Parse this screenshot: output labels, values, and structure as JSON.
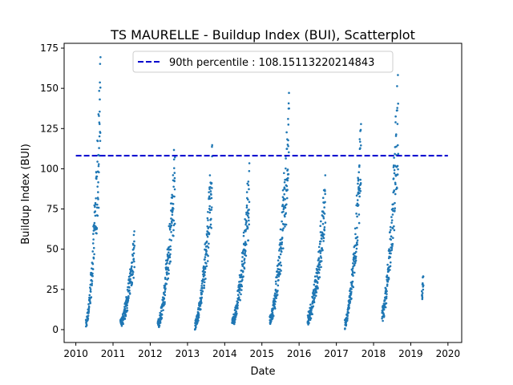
{
  "chart_data": {
    "type": "scatter",
    "title": "TS MAURELLE - Buildup Index (BUI), Scatterplot",
    "xlabel": "Date",
    "ylabel": "Buildup Index (BUI)",
    "xlim": [
      "2009-09-08",
      "2020-05-15"
    ],
    "ylim": [
      -8,
      178
    ],
    "x_ticks": [
      "2010",
      "2011",
      "2012",
      "2013",
      "2014",
      "2015",
      "2016",
      "2017",
      "2018",
      "2019",
      "2020"
    ],
    "y_ticks": [
      0,
      25,
      50,
      75,
      100,
      125,
      150,
      175
    ],
    "grid": false,
    "legend_position": "top-center",
    "colors": {
      "points": "#1f77b4",
      "reference_line": "#0000cd"
    },
    "reference_line": {
      "label": "90th percentile : 108.15113220214843",
      "value": 108.15113220214843,
      "x_range": [
        "2010-01-01",
        "2020-01-01"
      ],
      "style": "dashed"
    },
    "seasons": [
      {
        "year": 2010,
        "start": "2010-04-10",
        "end": "2010-08-31",
        "min": 1,
        "peak": 170
      },
      {
        "year": 2011,
        "start": "2011-03-15",
        "end": "2011-07-31",
        "min": 1,
        "peak": 62
      },
      {
        "year": 2012,
        "start": "2012-03-15",
        "end": "2012-08-31",
        "min": 0,
        "peak": 119
      },
      {
        "year": 2013,
        "start": "2013-03-15",
        "end": "2013-08-31",
        "min": 0,
        "peak": 116
      },
      {
        "year": 2014,
        "start": "2014-03-15",
        "end": "2014-08-31",
        "min": 2,
        "peak": 104
      },
      {
        "year": 2015,
        "start": "2015-03-20",
        "end": "2015-09-25",
        "min": 3,
        "peak": 149
      },
      {
        "year": 2016,
        "start": "2016-03-25",
        "end": "2016-09-15",
        "min": 5,
        "peak": 98
      },
      {
        "year": 2017,
        "start": "2017-03-25",
        "end": "2017-08-31",
        "min": 0,
        "peak": 133
      },
      {
        "year": 2018,
        "start": "2018-03-25",
        "end": "2018-08-31",
        "min": 8,
        "peak": 167
      },
      {
        "year": 2019,
        "start": "2019-04-20",
        "end": "2019-05-05",
        "min": 24,
        "peak": 34
      }
    ]
  }
}
